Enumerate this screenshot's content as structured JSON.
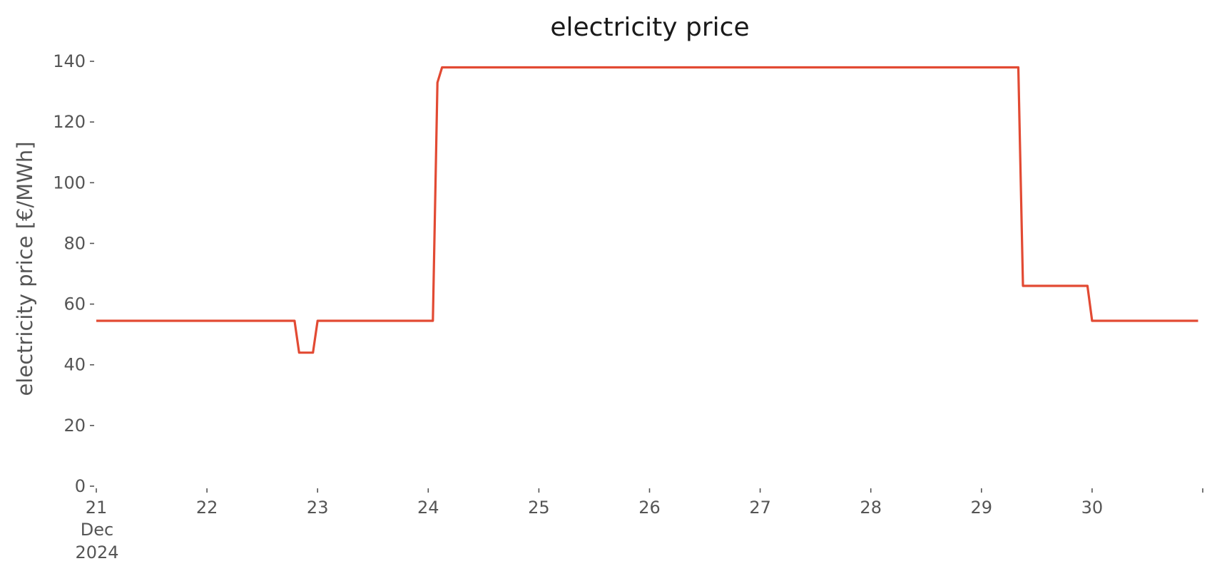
{
  "chart_data": {
    "type": "line",
    "title": "electricity price",
    "xlabel": "",
    "ylabel": "electricity price [€/MWh]",
    "xlim": [
      "2024-12-21T00:00",
      "2024-12-30T23:59"
    ],
    "ylim": [
      0,
      140
    ],
    "grid": false,
    "legend": "none",
    "y_ticks": [
      "0",
      "20",
      "40",
      "60",
      "80",
      "100",
      "120",
      "140"
    ],
    "x_ticks": [
      {
        "x": "2024-12-21T00:00",
        "label": "21",
        "sublabels": [
          "Dec",
          "2024"
        ]
      },
      {
        "x": "2024-12-22T00:00",
        "label": "22",
        "sublabels": []
      },
      {
        "x": "2024-12-23T00:00",
        "label": "23",
        "sublabels": []
      },
      {
        "x": "2024-12-24T00:00",
        "label": "24",
        "sublabels": []
      },
      {
        "x": "2024-12-25T00:00",
        "label": "25",
        "sublabels": []
      },
      {
        "x": "2024-12-26T00:00",
        "label": "26",
        "sublabels": []
      },
      {
        "x": "2024-12-27T00:00",
        "label": "27",
        "sublabels": []
      },
      {
        "x": "2024-12-28T00:00",
        "label": "28",
        "sublabels": []
      },
      {
        "x": "2024-12-29T00:00",
        "label": "29",
        "sublabels": []
      },
      {
        "x": "2024-12-30T00:00",
        "label": "30",
        "sublabels": []
      },
      {
        "x": "2024-12-31T00:00",
        "label": "",
        "sublabels": []
      }
    ],
    "series": [
      {
        "color": "#E24A33",
        "points": [
          {
            "x": "2024-12-21T00:00",
            "y": 54.5
          },
          {
            "x": "2024-12-22T19:00",
            "y": 54.5
          },
          {
            "x": "2024-12-22T20:00",
            "y": 44
          },
          {
            "x": "2024-12-22T23:00",
            "y": 44
          },
          {
            "x": "2024-12-23T00:00",
            "y": 54.5
          },
          {
            "x": "2024-12-24T01:00",
            "y": 54.5
          },
          {
            "x": "2024-12-24T02:00",
            "y": 133
          },
          {
            "x": "2024-12-24T03:00",
            "y": 138
          },
          {
            "x": "2024-12-29T08:00",
            "y": 138
          },
          {
            "x": "2024-12-29T09:00",
            "y": 66
          },
          {
            "x": "2024-12-29T23:00",
            "y": 66
          },
          {
            "x": "2024-12-30T00:00",
            "y": 54.5
          },
          {
            "x": "2024-12-30T23:00",
            "y": 54.5
          }
        ]
      }
    ]
  }
}
